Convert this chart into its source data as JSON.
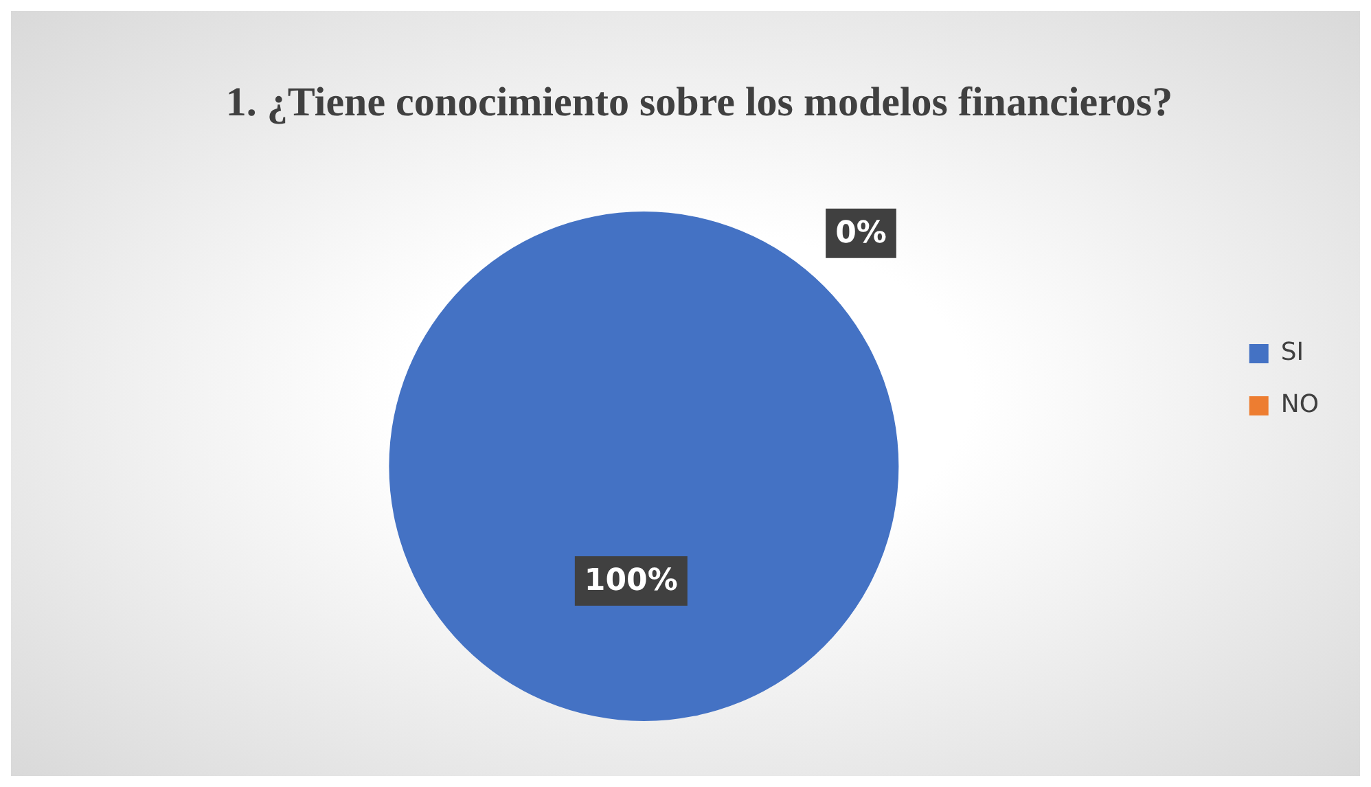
{
  "chart_data": {
    "type": "pie",
    "title": "1. ¿Tiene conocimiento sobre los modelos financieros?",
    "categories": [
      "SI",
      "NO"
    ],
    "values": [
      100,
      0
    ],
    "colors": [
      "#4472c4",
      "#ed7d31"
    ],
    "value_labels": [
      "100%",
      "0%"
    ],
    "legend": "right"
  }
}
